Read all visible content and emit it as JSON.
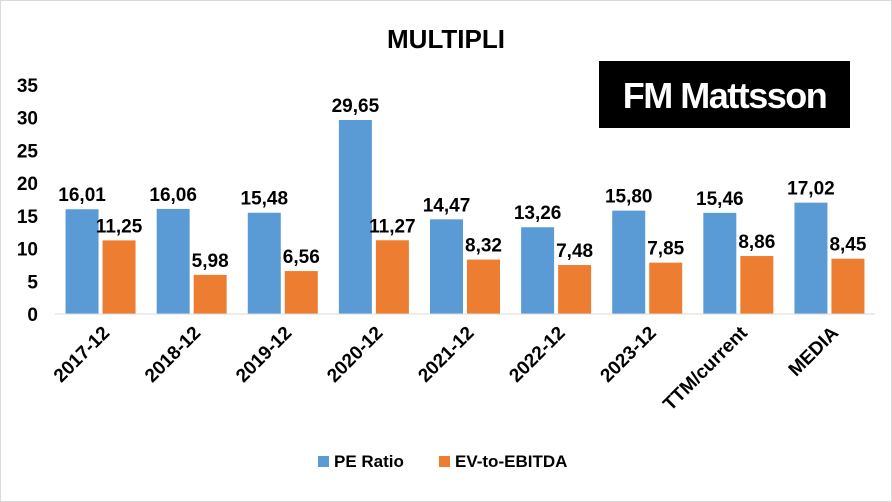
{
  "chart_data": {
    "type": "bar",
    "title": "MULTIPLI",
    "categories": [
      "2017-12",
      "2018-12",
      "2019-12",
      "2020-12",
      "2021-12",
      "2022-12",
      "2023-12",
      "TTM/current",
      "MEDIA"
    ],
    "series": [
      {
        "name": "PE Ratio",
        "color": "#5b9bd5",
        "values": [
          16.01,
          16.06,
          15.48,
          29.65,
          14.47,
          13.26,
          15.8,
          15.46,
          17.02
        ],
        "labels": [
          "16,01",
          "16,06",
          "15,48",
          "29,65",
          "14,47",
          "13,26",
          "15,80",
          "15,46",
          "17,02"
        ]
      },
      {
        "name": "EV-to-EBITDA",
        "color": "#ed7d31",
        "values": [
          11.25,
          5.98,
          6.56,
          11.27,
          8.32,
          7.48,
          7.85,
          8.86,
          8.45
        ],
        "labels": [
          "11,25",
          "5,98",
          "6,56",
          "11,27",
          "8,32",
          "7,48",
          "7,85",
          "8,86",
          "8,45"
        ]
      }
    ],
    "ylim": [
      0,
      35
    ],
    "yticks": [
      0,
      5,
      10,
      15,
      20,
      25,
      30,
      35
    ],
    "grid": false,
    "legend": "bottom",
    "xlabel": "",
    "ylabel": ""
  },
  "logo": {
    "text": "FM Mattsson",
    "background": "#000000",
    "color": "#ffffff"
  }
}
